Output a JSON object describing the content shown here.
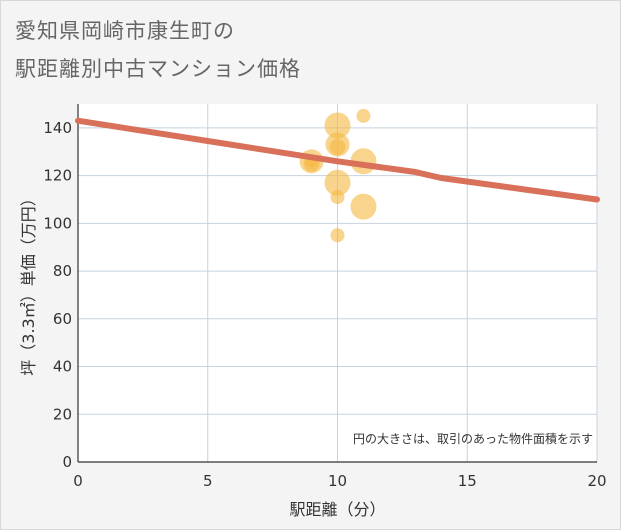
{
  "header": {
    "title_line1": "愛知県岡崎市康生町の",
    "title_line2": "駅距離別中古マンション価格"
  },
  "chart_data": {
    "type": "scatter",
    "title": "愛知県岡崎市康生町の駅距離別中古マンション価格",
    "xlabel": "駅距離（分）",
    "ylabel": "坪（3.3㎡）単価（万円）",
    "xlim": [
      0,
      20
    ],
    "ylim": [
      0,
      150
    ],
    "xticks": [
      0,
      5,
      10,
      15,
      20
    ],
    "yticks": [
      0,
      20,
      40,
      60,
      80,
      100,
      120,
      140
    ],
    "grid": true,
    "annotation": "円の大きさは、取引のあった物件面積を示す",
    "colors": {
      "bubble": "#f5b841",
      "trend": "#d9705a",
      "grid": "#c7d3df",
      "plot_bg": "#ffffff"
    },
    "points": [
      {
        "x": 9,
        "y": 126,
        "size": 12
      },
      {
        "x": 9,
        "y": 125,
        "size": 8
      },
      {
        "x": 9,
        "y": 126,
        "size": 6
      },
      {
        "x": 10,
        "y": 141,
        "size": 13
      },
      {
        "x": 10,
        "y": 133,
        "size": 12
      },
      {
        "x": 10,
        "y": 132,
        "size": 8
      },
      {
        "x": 10,
        "y": 117,
        "size": 13
      },
      {
        "x": 10,
        "y": 111,
        "size": 7
      },
      {
        "x": 10,
        "y": 95,
        "size": 7
      },
      {
        "x": 11,
        "y": 145,
        "size": 7
      },
      {
        "x": 11,
        "y": 126,
        "size": 13
      },
      {
        "x": 11,
        "y": 107,
        "size": 13
      }
    ],
    "trend_line": [
      {
        "x": 0,
        "y": 143
      },
      {
        "x": 5,
        "y": 134.5
      },
      {
        "x": 10,
        "y": 126
      },
      {
        "x": 13,
        "y": 121.5
      },
      {
        "x": 14,
        "y": 119
      },
      {
        "x": 20,
        "y": 110
      }
    ]
  }
}
